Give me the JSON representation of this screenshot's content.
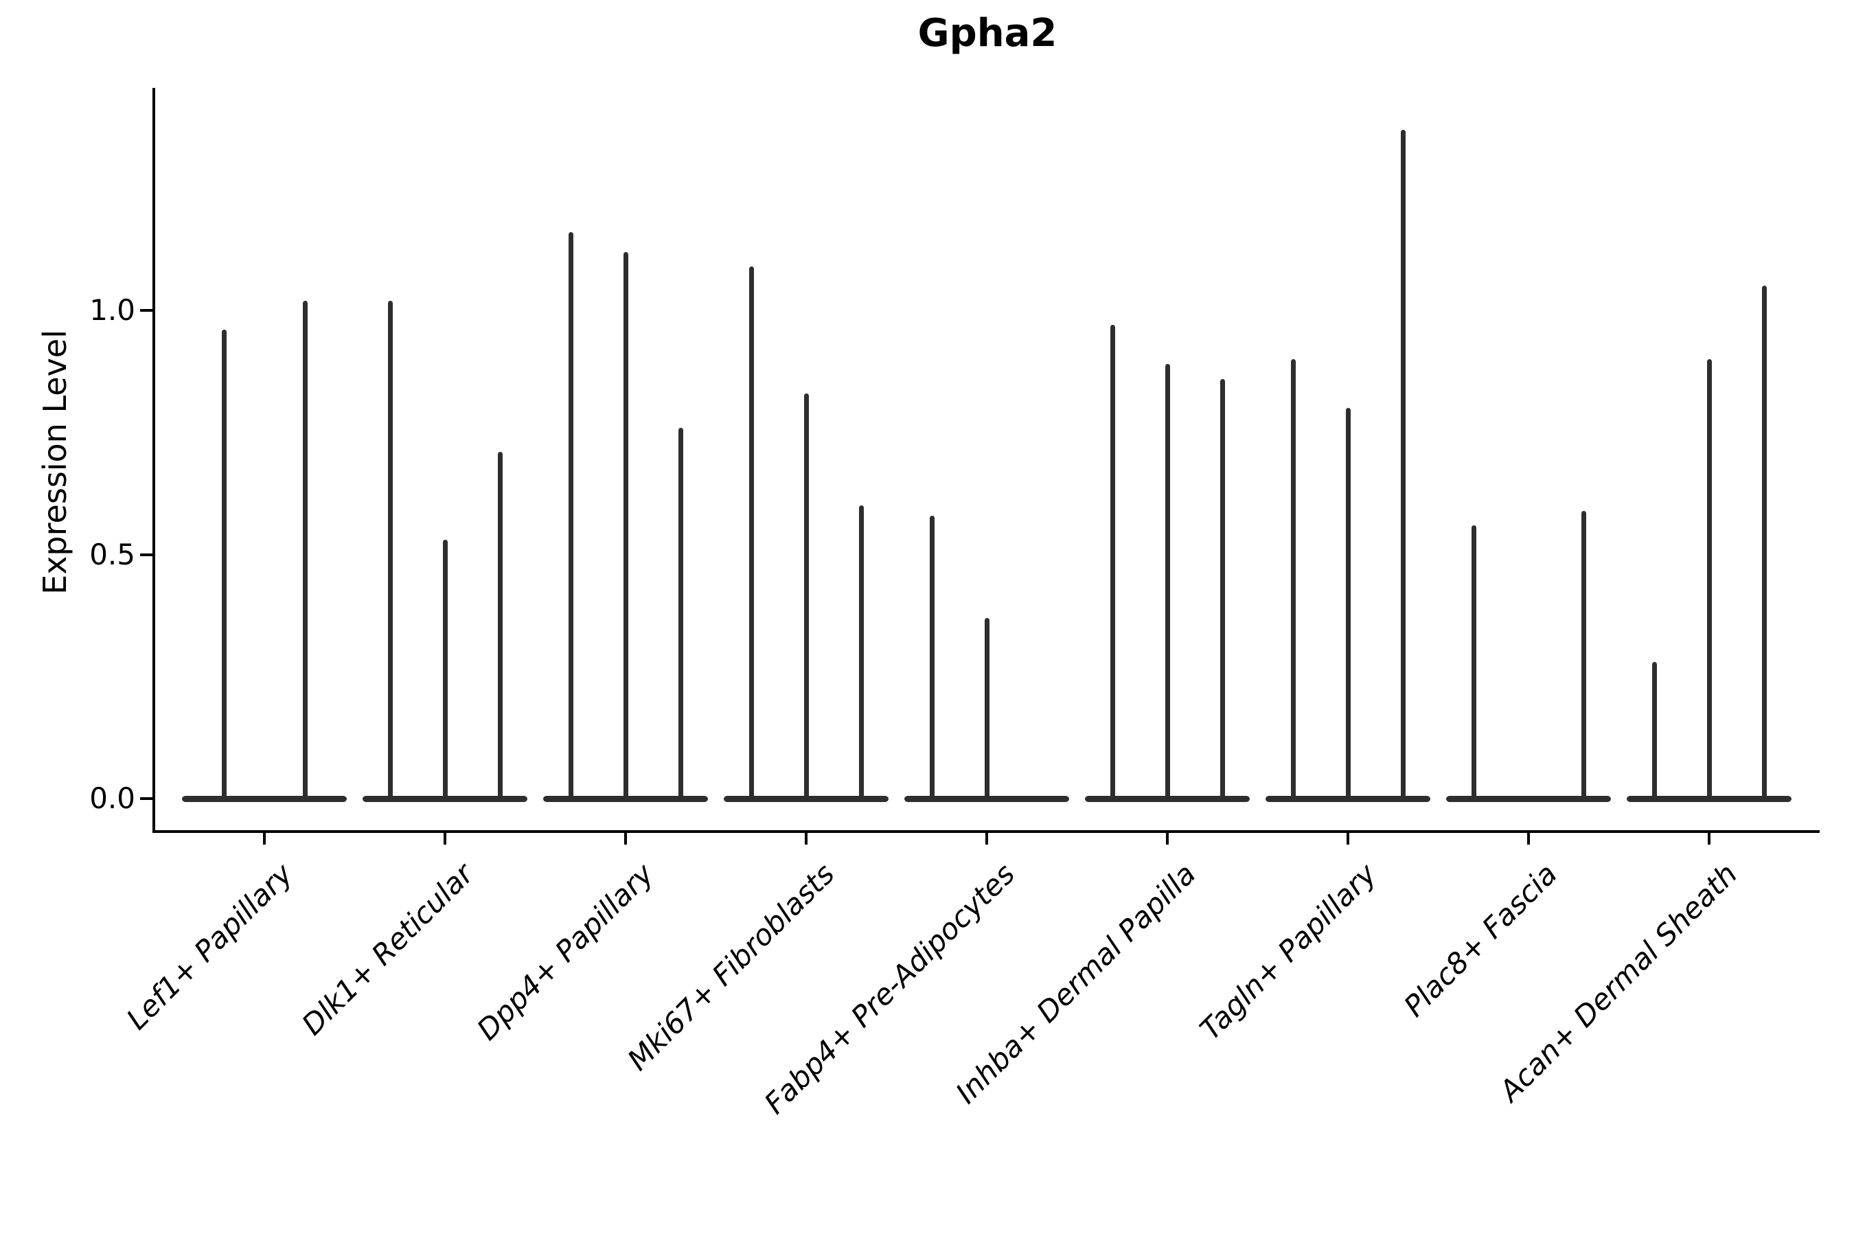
{
  "title": "Gpha2",
  "axes": {
    "ylabel": "Expression Level",
    "ytick_labels": [
      "0.0",
      "0.5",
      "1.0"
    ]
  },
  "chart_data": {
    "type": "violin",
    "title": "Gpha2",
    "xlabel": "",
    "ylabel": "Expression Level",
    "ylim": [
      -0.07,
      1.45
    ],
    "yticks": [
      0.0,
      0.5,
      1.0
    ],
    "grid": false,
    "legend": "none",
    "categories": [
      "Lef1+ Papillary",
      "Dlk1+ Reticular",
      "Dpp4+ Papillary",
      "Mki67+ Fibroblasts",
      "Fabp4+ Pre-Adipocytes",
      "Inhba+ Dermal Papilla",
      "Tagln+ Papillary",
      "Plac8+ Fascia",
      "Acan+ Dermal Sheath"
    ],
    "series": [
      {
        "category": "Lef1+ Papillary",
        "violin_peaks": [
          0.96,
          1.02
        ]
      },
      {
        "category": "Dlk1+ Reticular",
        "violin_peaks": [
          1.02,
          0.53,
          0.71
        ]
      },
      {
        "category": "Dpp4+ Papillary",
        "violin_peaks": [
          1.16,
          1.12,
          0.76
        ]
      },
      {
        "category": "Mki67+ Fibroblasts",
        "violin_peaks": [
          1.09,
          0.83,
          0.6
        ]
      },
      {
        "category": "Fabp4+ Pre-Adipocytes",
        "violin_peaks": [
          0.58,
          0.37,
          0.0
        ]
      },
      {
        "category": "Inhba+ Dermal Papilla",
        "violin_peaks": [
          0.97,
          0.89,
          0.86
        ]
      },
      {
        "category": "Tagln+ Papillary",
        "violin_peaks": [
          0.9,
          0.8,
          1.37
        ]
      },
      {
        "category": "Plac8+ Fascia",
        "violin_peaks": [
          0.56,
          0.0,
          0.59
        ]
      },
      {
        "category": "Acan+ Dermal Sheath",
        "violin_peaks": [
          0.28,
          0.9,
          1.05
        ]
      }
    ],
    "layout_hints": {
      "violin_color": "#2e2e2e",
      "axis_color": "#000000",
      "violins_per_group_touch_at_zero": true,
      "xtick_label_rotation_deg": 45,
      "xtick_label_style": "italic"
    }
  }
}
